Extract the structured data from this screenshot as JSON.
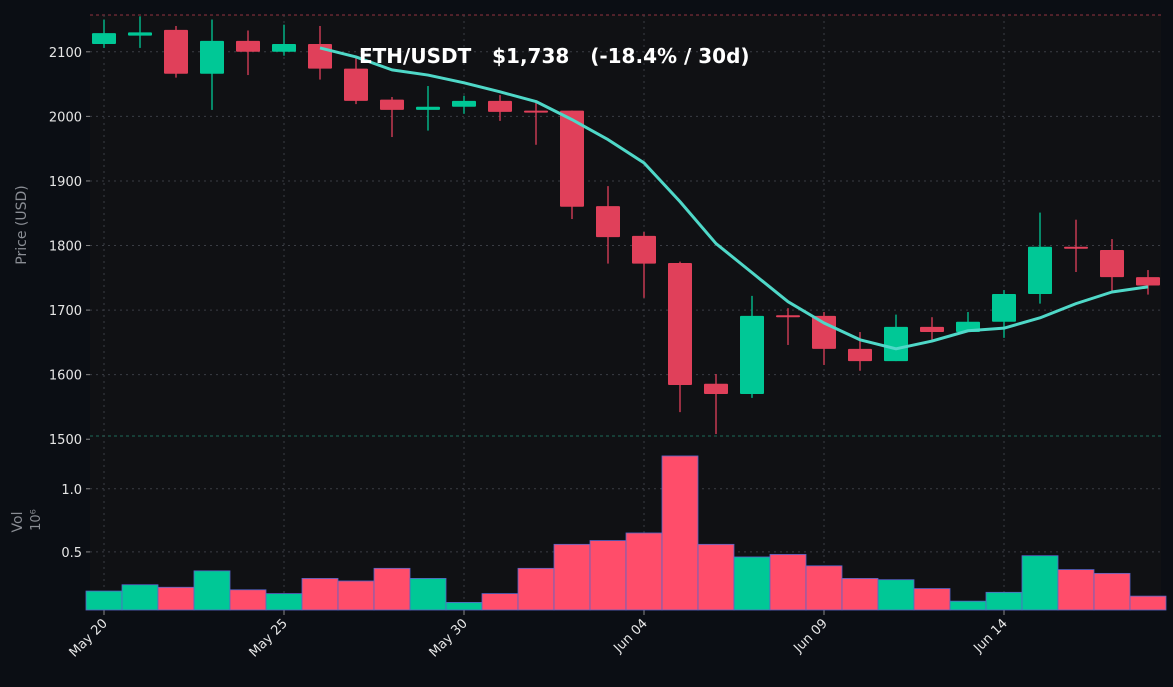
{
  "chart_data": {
    "type": "candlestick",
    "title": "ETH/USDT   $1,738   (-18.4% / 30d)",
    "y_label": "Price (USD)",
    "categories": [
      "May 20",
      null,
      null,
      null,
      null,
      "May 25",
      null,
      null,
      null,
      null,
      "May 30",
      null,
      null,
      null,
      null,
      "Jun 04",
      null,
      null,
      null,
      null,
      "Jun 09",
      null,
      null,
      null,
      null,
      "Jun 14",
      null,
      null,
      null,
      null
    ],
    "open": [
      2112,
      2125,
      2134,
      2066,
      2117,
      2100,
      2112,
      2074,
      2026,
      2010,
      2015,
      2024,
      2009,
      2009,
      1861,
      1815,
      1773,
      1586,
      1570,
      1692,
      1691,
      1640,
      1621,
      1674,
      1666,
      1682,
      1725,
      1798,
      1793,
      1751
    ],
    "high": [
      2150,
      2155,
      2140,
      2150,
      2133,
      2142,
      2140,
      2091,
      2030,
      2047,
      2032,
      2033,
      2021,
      2009,
      1892,
      1821,
      1775,
      1601,
      1722,
      1703,
      1697,
      1666,
      1693,
      1689,
      1697,
      1731,
      1851,
      1840,
      1810,
      1762
    ],
    "low": [
      2106,
      2106,
      2060,
      2010,
      2064,
      2094,
      2057,
      2019,
      1968,
      1978,
      2004,
      1993,
      1956,
      1841,
      1772,
      1719,
      1542,
      1508,
      1564,
      1646,
      1615,
      1606,
      1621,
      1654,
      1666,
      1657,
      1710,
      1759,
      1730,
      1724
    ],
    "close": [
      2129,
      2130,
      2066,
      2117,
      2100,
      2112,
      2074,
      2024,
      2010,
      2015,
      2024,
      2007,
      2008,
      1860,
      1813,
      1772,
      1584,
      1570,
      1691,
      1691,
      1640,
      1621,
      1674,
      1666,
      1682,
      1725,
      1798,
      1795,
      1751,
      1738
    ],
    "up_color": "#00c896",
    "down_color": "#e0405a",
    "ma": {
      "color": "#4fd8c8",
      "values": [
        null,
        null,
        null,
        null,
        null,
        null,
        2106,
        2092,
        2072,
        2064,
        2052,
        2038,
        2023,
        1995,
        1964,
        1928,
        1868,
        1803,
        1758,
        1713,
        1680,
        1654,
        1640,
        1652,
        1668,
        1672,
        1688,
        1710,
        1728,
        1736
      ]
    },
    "ylim": [
      1505,
      2157
    ],
    "yticks": [
      1500,
      1600,
      1700,
      1800,
      1900,
      2000,
      2100
    ],
    "grid": true,
    "volume": {
      "label": "Vol",
      "exponent": "10⁶",
      "up_color": "#00c896",
      "down_color": "#ff4d6a",
      "values": [
        0.19,
        0.24,
        0.22,
        0.35,
        0.2,
        0.17,
        0.29,
        0.27,
        0.37,
        0.29,
        0.1,
        0.17,
        0.37,
        0.56,
        0.59,
        0.65,
        1.26,
        0.56,
        0.46,
        0.48,
        0.39,
        0.29,
        0.28,
        0.21,
        0.11,
        0.18,
        0.47,
        0.36,
        0.33,
        0.15
      ],
      "ylim": [
        0.04,
        1.41
      ],
      "yticks": [
        0.5,
        {
          "value": 1,
          "label": "1.0"
        }
      ]
    }
  }
}
